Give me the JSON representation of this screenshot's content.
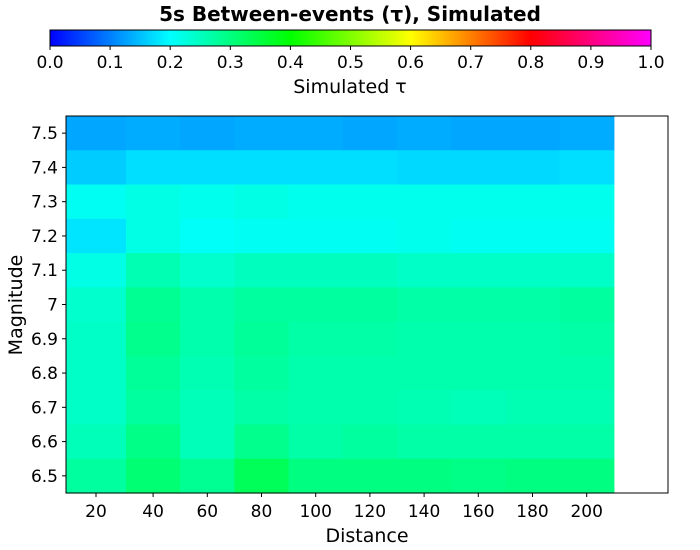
{
  "chart_data": {
    "type": "heatmap",
    "title": "5s Between-events (τ), Simulated",
    "xlabel": "Distance",
    "ylabel": "Magnitude",
    "colorbar": {
      "label": "Simulated τ",
      "range": [
        0.0,
        1.0
      ],
      "ticks": [
        "0.0",
        "0.1",
        "0.2",
        "0.3",
        "0.4",
        "0.5",
        "0.6",
        "0.7",
        "0.8",
        "0.9",
        "1.0"
      ],
      "colors": [
        "#0000ff",
        "#00ffff",
        "#00ff00",
        "#ffff00",
        "#ff0000",
        "#ff00ff"
      ]
    },
    "x": [
      "20",
      "40",
      "60",
      "80",
      "100",
      "120",
      "140",
      "160",
      "180",
      "200"
    ],
    "y": [
      "7.5",
      "7.4",
      "7.3",
      "7.2",
      "7.1",
      "7",
      "6.9",
      "6.8",
      "6.7",
      "6.6",
      "6.5"
    ],
    "values": [
      [
        0.13,
        0.135,
        0.13,
        0.135,
        0.135,
        0.13,
        0.135,
        0.13,
        0.13,
        0.135
      ],
      [
        0.16,
        0.175,
        0.175,
        0.175,
        0.175,
        0.175,
        0.17,
        0.17,
        0.17,
        0.175
      ],
      [
        0.21,
        0.22,
        0.215,
        0.22,
        0.215,
        0.215,
        0.215,
        0.215,
        0.215,
        0.215
      ],
      [
        0.18,
        0.22,
        0.205,
        0.21,
        0.21,
        0.21,
        0.215,
        0.21,
        0.21,
        0.21
      ],
      [
        0.22,
        0.26,
        0.24,
        0.25,
        0.25,
        0.25,
        0.245,
        0.245,
        0.245,
        0.245
      ],
      [
        0.24,
        0.285,
        0.265,
        0.275,
        0.275,
        0.275,
        0.27,
        0.27,
        0.27,
        0.275
      ],
      [
        0.245,
        0.29,
        0.265,
        0.28,
        0.27,
        0.27,
        0.265,
        0.265,
        0.265,
        0.27
      ],
      [
        0.245,
        0.28,
        0.26,
        0.275,
        0.265,
        0.265,
        0.265,
        0.265,
        0.265,
        0.265
      ],
      [
        0.245,
        0.275,
        0.255,
        0.27,
        0.265,
        0.265,
        0.26,
        0.255,
        0.26,
        0.26
      ],
      [
        0.255,
        0.295,
        0.255,
        0.29,
        0.27,
        0.275,
        0.27,
        0.27,
        0.27,
        0.27
      ],
      [
        0.275,
        0.31,
        0.285,
        0.33,
        0.3,
        0.3,
        0.3,
        0.295,
        0.3,
        0.3
      ]
    ]
  }
}
